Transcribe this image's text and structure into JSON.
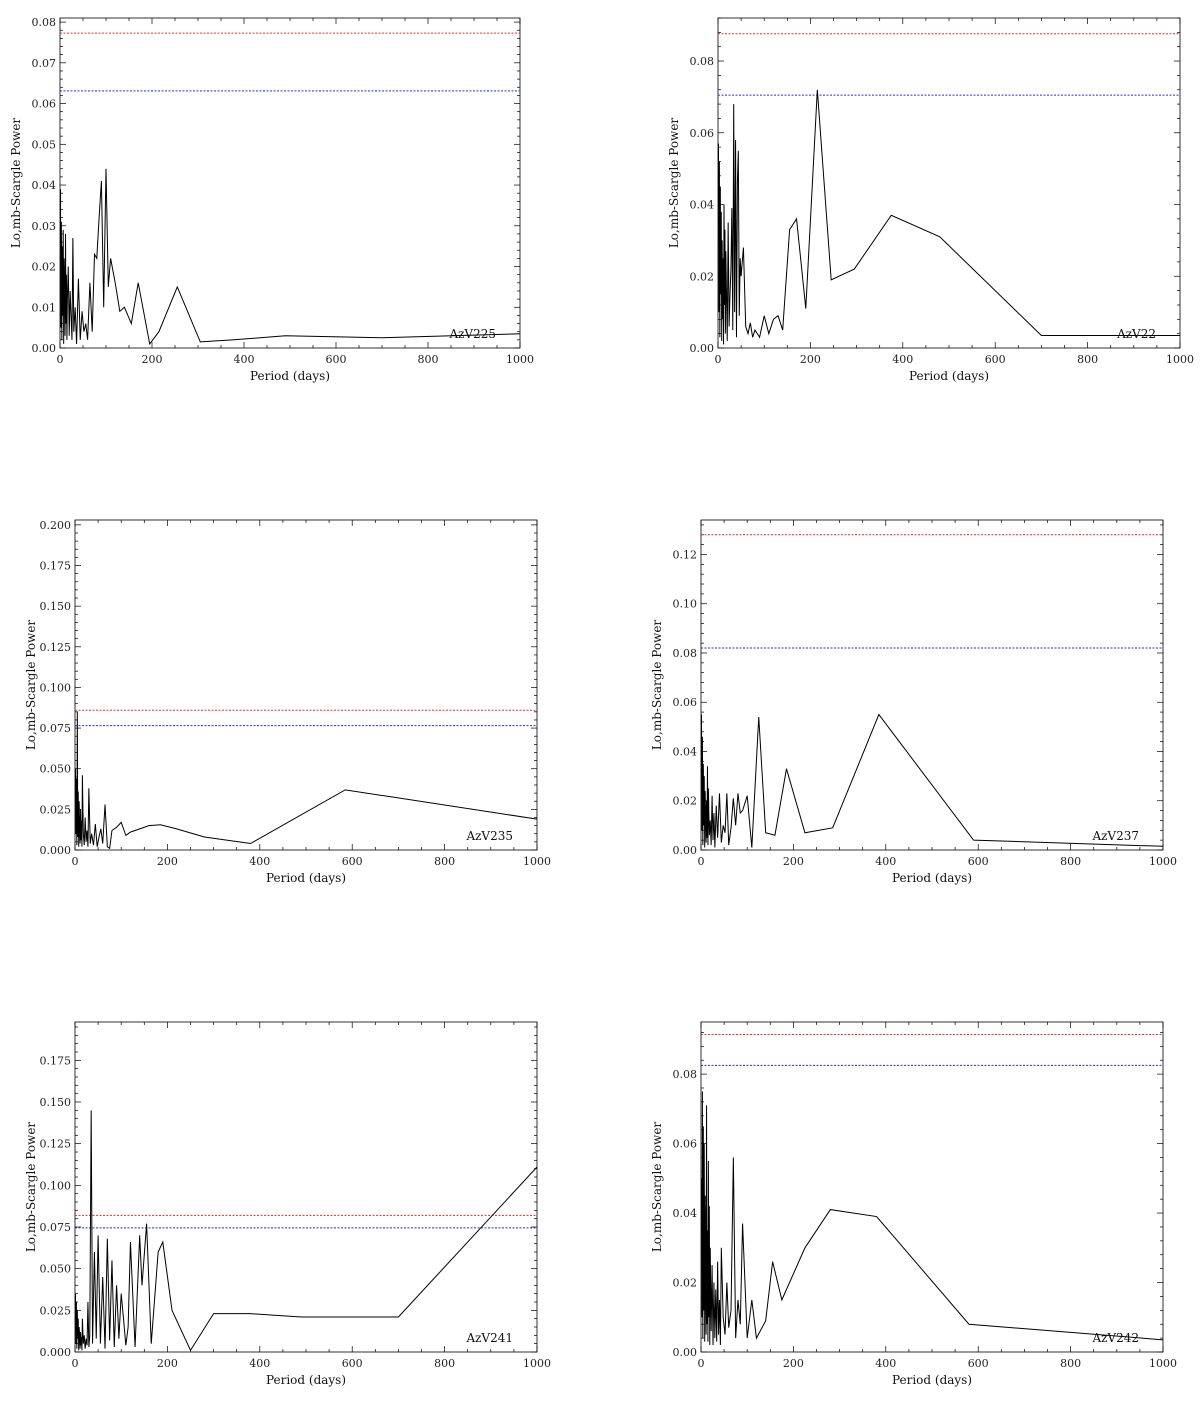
{
  "figure": {
    "title": ""
  },
  "chart_data": [
    {
      "type": "line",
      "star": "AzV225",
      "xlabel": "Period (days)",
      "ylabel": "Lo,mb-Scargle Power",
      "xlim": [
        0,
        1000
      ],
      "ylim": [
        0,
        0.081
      ],
      "xticks": [
        0,
        200,
        400,
        600,
        800,
        1000
      ],
      "yticks": [
        0.0,
        0.01,
        0.02,
        0.03,
        0.04,
        0.05,
        0.06,
        0.07,
        0.08
      ],
      "ytick_labels": [
        "0.00",
        "0.01",
        "0.02",
        "0.03",
        "0.04",
        "0.05",
        "0.06",
        "0.07",
        "0.08"
      ],
      "threshold_red": 0.0773,
      "threshold_blue": 0.0631,
      "colors": {
        "red": "#e03030",
        "blue": "#2030d0",
        "line": "#000000"
      },
      "series": [
        {
          "x": [
            1,
            2,
            3,
            4,
            5,
            6,
            7,
            8,
            9,
            10,
            11,
            12,
            13,
            14,
            15,
            16,
            18,
            20,
            22,
            24,
            26,
            28,
            30,
            33,
            36,
            40,
            44,
            48,
            52,
            56,
            60,
            65,
            70,
            75,
            80,
            85,
            90,
            95,
            100,
            105,
            110,
            120,
            130,
            140,
            155,
            170,
            195,
            215,
            255,
            305,
            375,
            490,
            700,
            1000
          ],
          "y": [
            0.039,
            0.005,
            0.031,
            0.002,
            0.025,
            0.008,
            0.029,
            0.001,
            0.022,
            0.015,
            0.003,
            0.028,
            0.006,
            0.018,
            0.002,
            0.012,
            0.02,
            0.003,
            0.014,
            0.008,
            0.002,
            0.027,
            0.004,
            0.01,
            0.001,
            0.017,
            0.002,
            0.009,
            0.004,
            0.006,
            0.002,
            0.016,
            0.004,
            0.023,
            0.022,
            0.032,
            0.041,
            0.01,
            0.044,
            0.015,
            0.022,
            0.016,
            0.009,
            0.01,
            0.006,
            0.016,
            0.001,
            0.004,
            0.015,
            0.0015,
            0.002,
            0.003,
            0.0025,
            0.0035
          ]
        }
      ]
    },
    {
      "type": "line",
      "star": "AzV22",
      "xlabel": "Period (days)",
      "ylabel": "Lo,mb-Scargle Power",
      "xlim": [
        0,
        1000
      ],
      "ylim": [
        0,
        0.092
      ],
      "xticks": [
        0,
        200,
        400,
        600,
        800,
        1000
      ],
      "yticks": [
        0.0,
        0.02,
        0.04,
        0.06,
        0.08
      ],
      "ytick_labels": [
        "0.00",
        "0.02",
        "0.04",
        "0.06",
        "0.08"
      ],
      "threshold_red": 0.0876,
      "threshold_blue": 0.0705,
      "colors": {
        "red": "#e03030",
        "blue": "#2030d0",
        "line": "#000000"
      },
      "series": [
        {
          "x": [
            1,
            2,
            3,
            4,
            5,
            6,
            7,
            8,
            9,
            10,
            11,
            12,
            13,
            14,
            15,
            16,
            17,
            18,
            20,
            22,
            24,
            26,
            28,
            30,
            32,
            34,
            36,
            38,
            40,
            42,
            44,
            46,
            48,
            50,
            55,
            60,
            65,
            70,
            75,
            80,
            85,
            90,
            100,
            110,
            120,
            130,
            140,
            155,
            170,
            190,
            215,
            245,
            295,
            375,
            480,
            700,
            1000
          ],
          "y": [
            0.057,
            0.01,
            0.052,
            0.003,
            0.045,
            0.015,
            0.038,
            0.002,
            0.03,
            0.008,
            0.025,
            0.001,
            0.04,
            0.012,
            0.033,
            0.004,
            0.027,
            0.018,
            0.002,
            0.035,
            0.006,
            0.015,
            0.022,
            0.039,
            0.005,
            0.068,
            0.01,
            0.058,
            0.003,
            0.046,
            0.055,
            0.009,
            0.025,
            0.02,
            0.028,
            0.006,
            0.004,
            0.007,
            0.003,
            0.005,
            0.004,
            0.003,
            0.009,
            0.004,
            0.008,
            0.009,
            0.005,
            0.033,
            0.036,
            0.011,
            0.072,
            0.019,
            0.022,
            0.037,
            0.031,
            0.0035,
            0.0035
          ]
        }
      ]
    },
    {
      "type": "line",
      "star": "AzV235",
      "xlabel": "Period (days)",
      "ylabel": "Lo,mb-Scargle Power",
      "xlim": [
        0,
        1000
      ],
      "ylim": [
        0,
        0.203
      ],
      "xticks": [
        0,
        200,
        400,
        600,
        800,
        1000
      ],
      "yticks": [
        0.0,
        0.025,
        0.05,
        0.075,
        0.1,
        0.125,
        0.15,
        0.175,
        0.2
      ],
      "ytick_labels": [
        "0.000",
        "0.025",
        "0.050",
        "0.075",
        "0.100",
        "0.125",
        "0.150",
        "0.175",
        "0.200"
      ],
      "threshold_red": 0.086,
      "threshold_blue": 0.0765,
      "colors": {
        "red": "#e03030",
        "blue": "#2030d0",
        "line": "#000000"
      },
      "series": [
        {
          "x": [
            1,
            2,
            3,
            4,
            5,
            6,
            7,
            8,
            9,
            10,
            11,
            12,
            13,
            14,
            15,
            16,
            18,
            20,
            22,
            24,
            26,
            28,
            30,
            33,
            36,
            40,
            44,
            48,
            52,
            56,
            60,
            65,
            70,
            75,
            80,
            90,
            100,
            105,
            110,
            120,
            140,
            160,
            185,
            220,
            280,
            380,
            585,
            1000
          ],
          "y": [
            0.05,
            0.01,
            0.044,
            0.003,
            0.085,
            0.008,
            0.036,
            0.002,
            0.03,
            0.012,
            0.004,
            0.025,
            0.006,
            0.018,
            0.002,
            0.046,
            0.01,
            0.003,
            0.02,
            0.005,
            0.012,
            0.002,
            0.038,
            0.004,
            0.01,
            0.003,
            0.016,
            0.002,
            0.008,
            0.013,
            0.004,
            0.028,
            0.002,
            0.001,
            0.012,
            0.014,
            0.017,
            0.013,
            0.009,
            0.011,
            0.013,
            0.015,
            0.0155,
            0.013,
            0.008,
            0.004,
            0.037,
            0.019
          ]
        }
      ]
    },
    {
      "type": "line",
      "star": "AzV237",
      "xlabel": "Period (days)",
      "ylabel": "Lo,mb-Scargle Power",
      "xlim": [
        0,
        1000
      ],
      "ylim": [
        0,
        0.134
      ],
      "xticks": [
        0,
        200,
        400,
        600,
        800,
        1000
      ],
      "yticks": [
        0.0,
        0.02,
        0.04,
        0.06,
        0.08,
        0.1,
        0.12
      ],
      "ytick_labels": [
        "0.00",
        "0.02",
        "0.04",
        "0.06",
        "0.08",
        "0.10",
        "0.12"
      ],
      "threshold_red": 0.128,
      "threshold_blue": 0.082,
      "colors": {
        "red": "#e03030",
        "blue": "#2030d0",
        "line": "#000000"
      },
      "series": [
        {
          "x": [
            1,
            2,
            3,
            4,
            5,
            6,
            7,
            8,
            9,
            10,
            11,
            12,
            13,
            14,
            15,
            16,
            18,
            20,
            22,
            24,
            26,
            28,
            30,
            33,
            36,
            40,
            44,
            48,
            52,
            56,
            60,
            65,
            70,
            75,
            80,
            85,
            90,
            100,
            110,
            125,
            140,
            160,
            185,
            225,
            285,
            385,
            590,
            1000
          ],
          "y": [
            0.055,
            0.008,
            0.046,
            0.002,
            0.035,
            0.01,
            0.03,
            0.001,
            0.024,
            0.014,
            0.003,
            0.02,
            0.005,
            0.034,
            0.002,
            0.025,
            0.006,
            0.012,
            0.002,
            0.022,
            0.004,
            0.015,
            0.001,
            0.018,
            0.005,
            0.023,
            0.003,
            0.01,
            0.007,
            0.023,
            0.002,
            0.009,
            0.021,
            0.01,
            0.023,
            0.015,
            0.016,
            0.022,
            0.001,
            0.054,
            0.007,
            0.006,
            0.033,
            0.007,
            0.009,
            0.055,
            0.004,
            0.0015
          ]
        }
      ]
    },
    {
      "type": "line",
      "star": "AzV241",
      "xlabel": "Period (days)",
      "ylabel": "Lo,mb-Scargle Power",
      "xlim": [
        0,
        1000
      ],
      "ylim": [
        0,
        0.198
      ],
      "xticks": [
        0,
        200,
        400,
        600,
        800,
        1000
      ],
      "yticks": [
        0.0,
        0.025,
        0.05,
        0.075,
        0.1,
        0.125,
        0.15,
        0.175
      ],
      "ytick_labels": [
        "0.000",
        "0.025",
        "0.050",
        "0.075",
        "0.100",
        "0.125",
        "0.150",
        "0.175"
      ],
      "threshold_red": 0.082,
      "threshold_blue": 0.0745,
      "colors": {
        "red": "#e03030",
        "blue": "#2030d0",
        "line": "#000000"
      },
      "series": [
        {
          "x": [
            1,
            2,
            3,
            4,
            5,
            6,
            7,
            8,
            9,
            10,
            11,
            12,
            13,
            14,
            15,
            16,
            18,
            20,
            22,
            24,
            26,
            28,
            30,
            32,
            35,
            38,
            42,
            46,
            50,
            55,
            60,
            65,
            70,
            75,
            80,
            85,
            90,
            95,
            100,
            105,
            110,
            115,
            120,
            130,
            140,
            145,
            155,
            165,
            180,
            190,
            210,
            250,
            300,
            380,
            490,
            700,
            1000
          ],
          "y": [
            0.035,
            0.005,
            0.03,
            0.002,
            0.025,
            0.008,
            0.02,
            0.001,
            0.015,
            0.01,
            0.002,
            0.012,
            0.004,
            0.009,
            0.001,
            0.02,
            0.005,
            0.01,
            0.002,
            0.008,
            0.004,
            0.03,
            0.003,
            0.01,
            0.145,
            0.005,
            0.06,
            0.008,
            0.07,
            0.005,
            0.045,
            0.002,
            0.068,
            0.007,
            0.055,
            0.003,
            0.04,
            0.008,
            0.035,
            0.02,
            0.004,
            0.015,
            0.066,
            0.003,
            0.07,
            0.04,
            0.077,
            0.005,
            0.06,
            0.066,
            0.025,
            0.001,
            0.023,
            0.023,
            0.021,
            0.021,
            0.111
          ]
        }
      ]
    },
    {
      "type": "line",
      "star": "AzV242",
      "xlabel": "Period (days)",
      "ylabel": "Lo,mb-Scargle Power",
      "xlim": [
        0,
        1000
      ],
      "ylim": [
        0,
        0.095
      ],
      "xticks": [
        0,
        200,
        400,
        600,
        800,
        1000
      ],
      "yticks": [
        0.0,
        0.02,
        0.04,
        0.06,
        0.08
      ],
      "ytick_labels": [
        "0.00",
        "0.02",
        "0.04",
        "0.06",
        "0.08"
      ],
      "threshold_red": 0.0914,
      "threshold_blue": 0.0825,
      "colors": {
        "red": "#e03030",
        "blue": "#2030d0",
        "line": "#000000"
      },
      "series": [
        {
          "x": [
            1,
            2,
            3,
            4,
            5,
            6,
            7,
            8,
            9,
            10,
            11,
            12,
            13,
            14,
            15,
            16,
            17,
            18,
            19,
            20,
            22,
            24,
            26,
            28,
            30,
            32,
            34,
            36,
            38,
            40,
            42,
            44,
            48,
            52,
            56,
            60,
            65,
            70,
            75,
            80,
            85,
            90,
            100,
            110,
            120,
            140,
            155,
            175,
            225,
            280,
            380,
            580,
            1000
          ],
          "y": [
            0.05,
            0.01,
            0.075,
            0.004,
            0.065,
            0.012,
            0.06,
            0.003,
            0.045,
            0.02,
            0.005,
            0.071,
            0.008,
            0.035,
            0.003,
            0.055,
            0.01,
            0.042,
            0.002,
            0.03,
            0.006,
            0.025,
            0.002,
            0.02,
            0.004,
            0.018,
            0.003,
            0.026,
            0.005,
            0.015,
            0.002,
            0.03,
            0.01,
            0.005,
            0.02,
            0.007,
            0.012,
            0.056,
            0.004,
            0.015,
            0.008,
            0.037,
            0.004,
            0.015,
            0.004,
            0.009,
            0.026,
            0.015,
            0.03,
            0.041,
            0.039,
            0.008,
            0.0035
          ]
        }
      ]
    }
  ]
}
